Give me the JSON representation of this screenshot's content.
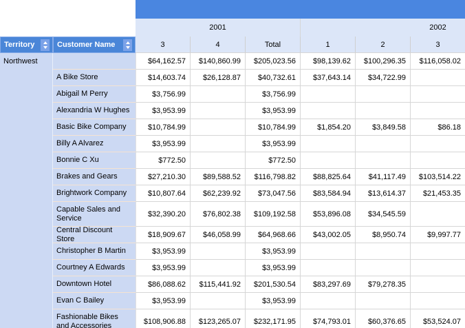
{
  "colors": {
    "band": "#4a86e0",
    "header": "#4a86d8",
    "sorticon": "#7ba2e8",
    "lightrow": "#dce6f8",
    "leftcol": "#ccd9f3",
    "grid": "#d6d6d6",
    "peach": "#f5e3d2"
  },
  "header": {
    "territory_label": "Territory",
    "customer_label": "Customer Name",
    "years": [
      {
        "label": "2001"
      },
      {
        "label": "2002"
      }
    ],
    "quarter_columns": [
      "3",
      "4",
      "Total",
      "1",
      "2",
      "3"
    ]
  },
  "table": {
    "territory": "Northwest",
    "summary_row": {
      "values": [
        "$64,162.57",
        "$140,860.99",
        "$205,023.56",
        "$98,139.62",
        "$100,296.35",
        "$116,058.02"
      ]
    },
    "rows": [
      {
        "customer": "A Bike Store",
        "values": [
          "$14,603.74",
          "$26,128.87",
          "$40,732.61",
          "$37,643.14",
          "$34,722.99",
          ""
        ]
      },
      {
        "customer": "Abigail M Perry",
        "values": [
          "$3,756.99",
          "",
          "$3,756.99",
          "",
          "",
          ""
        ]
      },
      {
        "customer": "Alexandria W Hughes",
        "values": [
          "$3,953.99",
          "",
          "$3,953.99",
          "",
          "",
          ""
        ]
      },
      {
        "customer": "Basic Bike Company",
        "values": [
          "$10,784.99",
          "",
          "$10,784.99",
          "$1,854.20",
          "$3,849.58",
          "$86.18"
        ]
      },
      {
        "customer": "Billy A Alvarez",
        "values": [
          "$3,953.99",
          "",
          "$3,953.99",
          "",
          "",
          ""
        ]
      },
      {
        "customer": "Bonnie C Xu",
        "values": [
          "$772.50",
          "",
          "$772.50",
          "",
          "",
          ""
        ]
      },
      {
        "customer": "Brakes and Gears",
        "values": [
          "$27,210.30",
          "$89,588.52",
          "$116,798.82",
          "$88,825.64",
          "$41,117.49",
          "$103,514.22"
        ]
      },
      {
        "customer": "Brightwork Company",
        "values": [
          "$10,807.64",
          "$62,239.92",
          "$73,047.56",
          "$83,584.94",
          "$13,614.37",
          "$21,453.35"
        ]
      },
      {
        "customer": "Capable Sales and Service",
        "values": [
          "$32,390.20",
          "$76,802.38",
          "$109,192.58",
          "$53,896.08",
          "$34,545.59",
          ""
        ]
      },
      {
        "customer": "Central Discount Store",
        "values": [
          "$18,909.67",
          "$46,058.99",
          "$64,968.66",
          "$43,002.05",
          "$8,950.74",
          "$9,997.77"
        ]
      },
      {
        "customer": "Christopher B Martin",
        "values": [
          "$3,953.99",
          "",
          "$3,953.99",
          "",
          "",
          ""
        ]
      },
      {
        "customer": "Courtney A Edwards",
        "values": [
          "$3,953.99",
          "",
          "$3,953.99",
          "",
          "",
          ""
        ]
      },
      {
        "customer": "Downtown Hotel",
        "values": [
          "$86,088.62",
          "$115,441.92",
          "$201,530.54",
          "$83,297.69",
          "$79,278.35",
          ""
        ]
      },
      {
        "customer": "Evan C Bailey",
        "values": [
          "$3,953.99",
          "",
          "$3,953.99",
          "",
          "",
          ""
        ]
      },
      {
        "customer": "Fashionable Bikes and Accessories",
        "values": [
          "$108,906.88",
          "$123,265.07",
          "$232,171.95",
          "$74,793.01",
          "$60,376.65",
          "$53,524.07"
        ]
      }
    ]
  }
}
